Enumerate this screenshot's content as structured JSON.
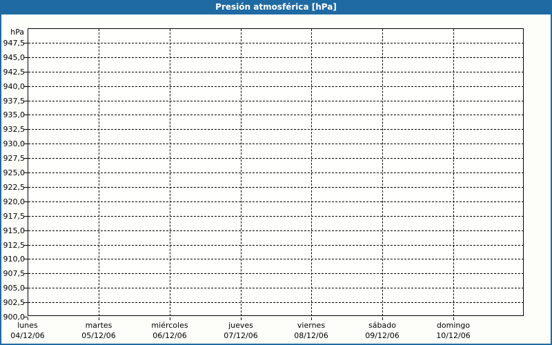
{
  "title_bar": {
    "title": "Presión atmosférica [hPa]"
  },
  "theme": {
    "titlebar_bg": "#1f6aa2",
    "titlebar_text": "#ffffff",
    "frame_border": "#1f6aa2",
    "canvas_bg": "#fdfdfa",
    "plot_bg": "#fffffe",
    "axis_color": "#000000",
    "grid_color": "#000000",
    "text_color": "#000000"
  },
  "chart_data": {
    "type": "line",
    "title": "Presión atmosférica [hPa]",
    "unit_label": "hPa",
    "ylim": [
      900,
      950
    ],
    "ytick_start": 900,
    "ytick_step": 2.5,
    "ytick_labels": [
      "900,0",
      "902,5",
      "905,0",
      "907,5",
      "910,0",
      "912,5",
      "915,0",
      "917,5",
      "920,0",
      "922,5",
      "925,0",
      "927,5",
      "930,0",
      "932,5",
      "935,0",
      "937,5",
      "940,0",
      "942,5",
      "945,0",
      "947,5"
    ],
    "categories": [
      {
        "day": "lunes",
        "date": "04/12/06"
      },
      {
        "day": "martes",
        "date": "05/12/06"
      },
      {
        "day": "miércoles",
        "date": "06/12/06"
      },
      {
        "day": "jueves",
        "date": "07/12/06"
      },
      {
        "day": "viernes",
        "date": "08/12/06"
      },
      {
        "day": "sábado",
        "date": "09/12/06"
      },
      {
        "day": "domingo",
        "date": "10/12/06"
      }
    ],
    "series": [],
    "grid": "dashed",
    "legend": "none"
  }
}
